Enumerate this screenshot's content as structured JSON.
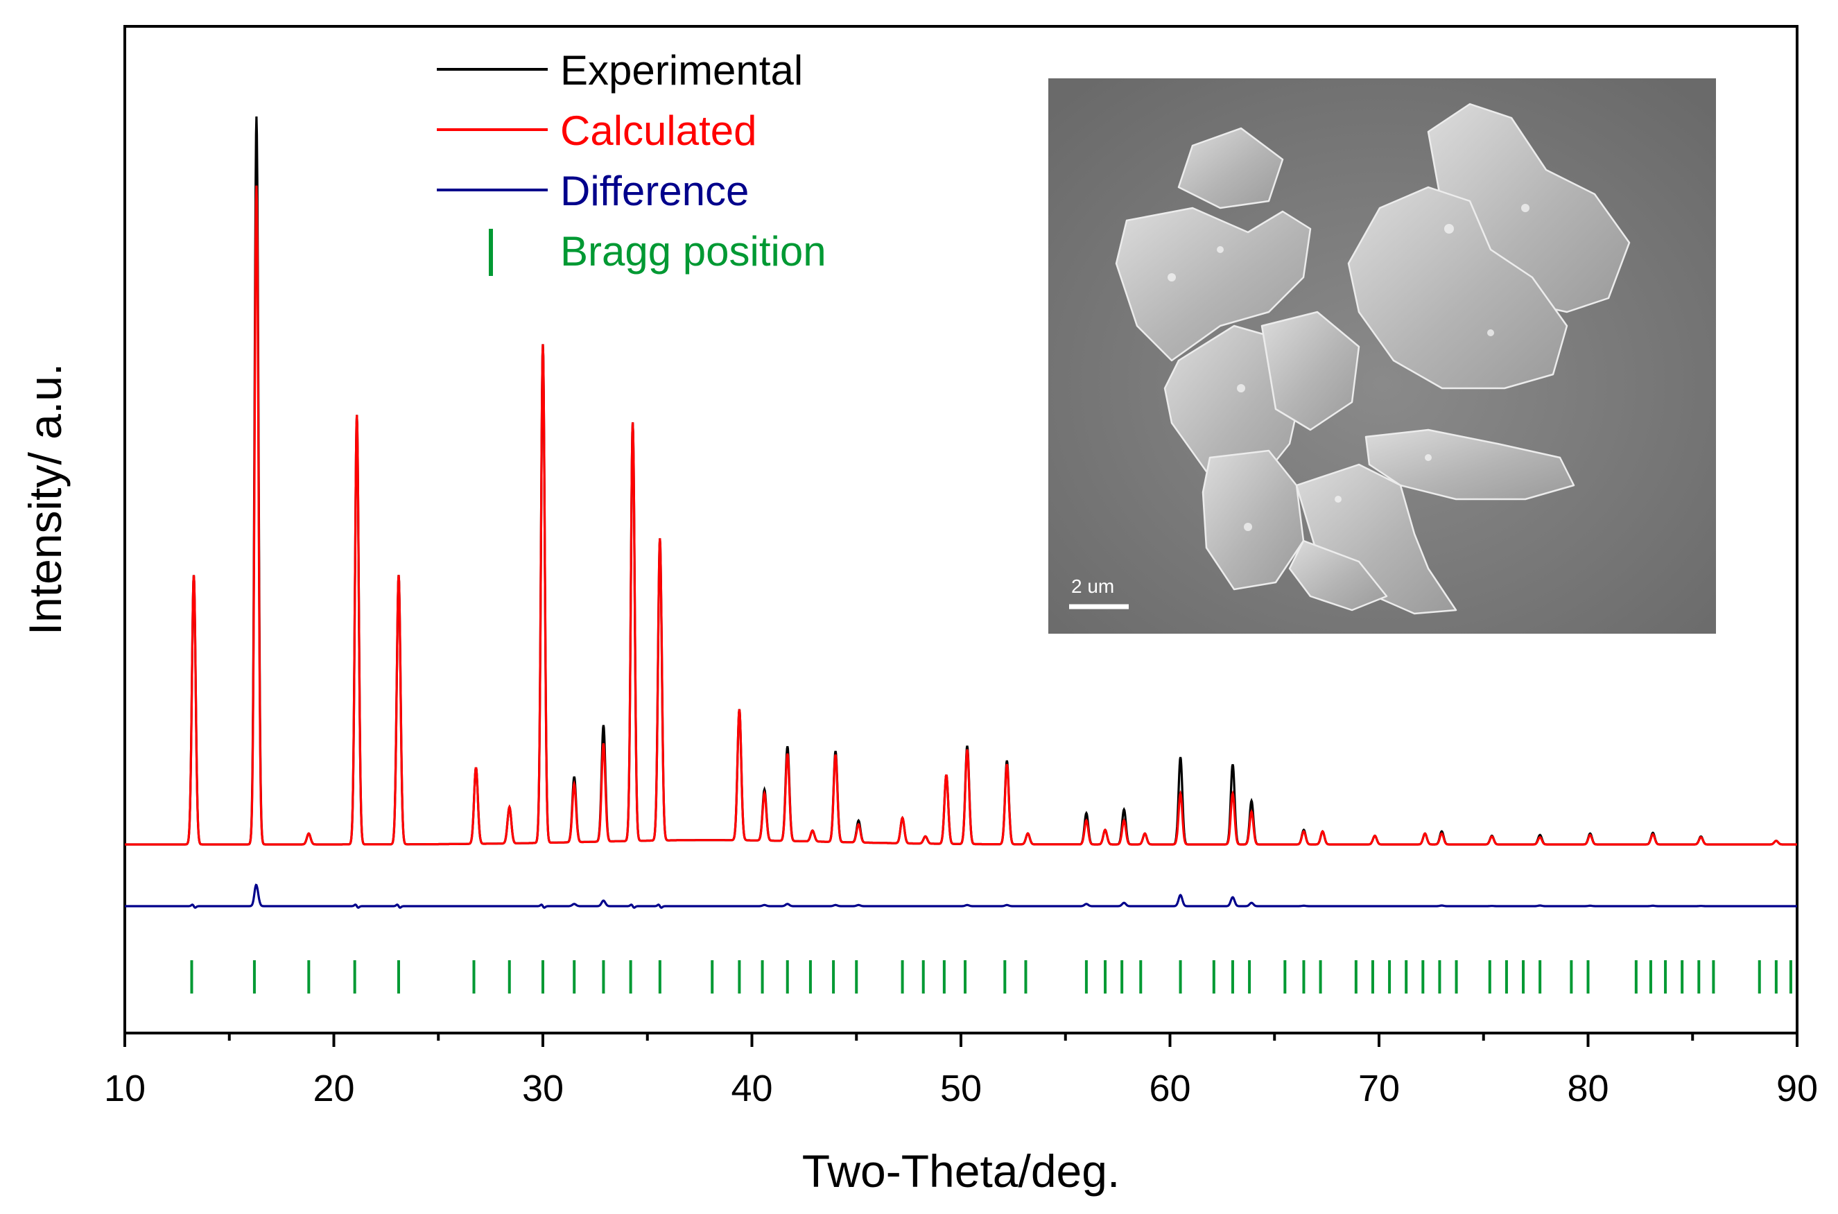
{
  "chart_data": {
    "type": "line",
    "title": "",
    "xlabel": "Two-Theta/deg.",
    "ylabel": "Intensity/ a.u.",
    "xlim": [
      10,
      90
    ],
    "x_ticks": [
      10,
      20,
      30,
      40,
      50,
      60,
      70,
      80,
      90
    ],
    "y_ticks": [],
    "grid": false,
    "legend_position": "top-left",
    "legend": [
      {
        "label": "Experimental",
        "color": "#000000",
        "marker": "line"
      },
      {
        "label": "Calculated",
        "color": "#ff0000",
        "marker": "line"
      },
      {
        "label": "Difference",
        "color": "#00008b",
        "marker": "line"
      },
      {
        "label": "Bragg position",
        "color": "#009933",
        "marker": "tick"
      }
    ],
    "scale_bar_label": "2 um",
    "experimental_peaks": [
      {
        "x": 13.3,
        "h": 37
      },
      {
        "x": 16.3,
        "h": 100
      },
      {
        "x": 18.8,
        "h": 1.5
      },
      {
        "x": 21.1,
        "h": 59
      },
      {
        "x": 23.1,
        "h": 37
      },
      {
        "x": 26.8,
        "h": 10.5
      },
      {
        "x": 28.4,
        "h": 5
      },
      {
        "x": 30.0,
        "h": 68.5
      },
      {
        "x": 31.5,
        "h": 9
      },
      {
        "x": 32.9,
        "h": 16
      },
      {
        "x": 34.3,
        "h": 57.5
      },
      {
        "x": 35.6,
        "h": 41.5
      },
      {
        "x": 39.4,
        "h": 18
      },
      {
        "x": 40.6,
        "h": 7
      },
      {
        "x": 41.7,
        "h": 13
      },
      {
        "x": 42.9,
        "h": 1.5
      },
      {
        "x": 44.0,
        "h": 12.5
      },
      {
        "x": 45.1,
        "h": 3
      },
      {
        "x": 47.2,
        "h": 3.5
      },
      {
        "x": 48.3,
        "h": 1
      },
      {
        "x": 49.3,
        "h": 9.5
      },
      {
        "x": 50.3,
        "h": 13.5
      },
      {
        "x": 52.2,
        "h": 11.5
      },
      {
        "x": 53.2,
        "h": 1.5
      },
      {
        "x": 56.0,
        "h": 4.3
      },
      {
        "x": 56.9,
        "h": 2
      },
      {
        "x": 57.8,
        "h": 4.8
      },
      {
        "x": 58.8,
        "h": 1.5
      },
      {
        "x": 60.5,
        "h": 12
      },
      {
        "x": 63.0,
        "h": 11
      },
      {
        "x": 63.9,
        "h": 6
      },
      {
        "x": 66.4,
        "h": 2
      },
      {
        "x": 67.3,
        "h": 1.8
      },
      {
        "x": 69.8,
        "h": 1.2
      },
      {
        "x": 72.2,
        "h": 1.5
      },
      {
        "x": 73.0,
        "h": 1.8
      },
      {
        "x": 75.4,
        "h": 1.2
      },
      {
        "x": 77.7,
        "h": 1.3
      },
      {
        "x": 80.1,
        "h": 1.5
      },
      {
        "x": 83.1,
        "h": 1.6
      },
      {
        "x": 85.4,
        "h": 1.1
      },
      {
        "x": 89.0,
        "h": 0.5
      }
    ],
    "calculated_peaks": [
      {
        "x": 13.3,
        "h": 37
      },
      {
        "x": 16.3,
        "h": 90.5
      },
      {
        "x": 18.8,
        "h": 1.5
      },
      {
        "x": 21.1,
        "h": 59
      },
      {
        "x": 23.1,
        "h": 37
      },
      {
        "x": 26.8,
        "h": 10.5
      },
      {
        "x": 28.4,
        "h": 5
      },
      {
        "x": 30.0,
        "h": 68.5
      },
      {
        "x": 31.5,
        "h": 8
      },
      {
        "x": 32.9,
        "h": 13.5
      },
      {
        "x": 34.3,
        "h": 57.5
      },
      {
        "x": 35.6,
        "h": 41.5
      },
      {
        "x": 39.4,
        "h": 18
      },
      {
        "x": 40.6,
        "h": 6.5
      },
      {
        "x": 41.7,
        "h": 12
      },
      {
        "x": 42.9,
        "h": 1.5
      },
      {
        "x": 44.0,
        "h": 12
      },
      {
        "x": 45.1,
        "h": 2.5
      },
      {
        "x": 47.2,
        "h": 3.5
      },
      {
        "x": 48.3,
        "h": 1
      },
      {
        "x": 49.3,
        "h": 9.5
      },
      {
        "x": 50.3,
        "h": 13
      },
      {
        "x": 52.2,
        "h": 11
      },
      {
        "x": 53.2,
        "h": 1.5
      },
      {
        "x": 56.0,
        "h": 3.3
      },
      {
        "x": 56.9,
        "h": 2
      },
      {
        "x": 57.8,
        "h": 3.3
      },
      {
        "x": 58.8,
        "h": 1.5
      },
      {
        "x": 60.5,
        "h": 7
      },
      {
        "x": 63.0,
        "h": 7
      },
      {
        "x": 63.9,
        "h": 4.5
      },
      {
        "x": 66.4,
        "h": 1.8
      },
      {
        "x": 67.3,
        "h": 1.8
      },
      {
        "x": 69.8,
        "h": 1.2
      },
      {
        "x": 72.2,
        "h": 1.5
      },
      {
        "x": 73.0,
        "h": 1.5
      },
      {
        "x": 75.4,
        "h": 1.1
      },
      {
        "x": 77.7,
        "h": 1
      },
      {
        "x": 80.1,
        "h": 1.3
      },
      {
        "x": 83.1,
        "h": 1.4
      },
      {
        "x": 85.4,
        "h": 1
      },
      {
        "x": 89.0,
        "h": 0.5
      }
    ],
    "bragg_positions": [
      13.2,
      16.2,
      18.8,
      21.0,
      23.1,
      26.7,
      28.4,
      30.0,
      31.5,
      32.9,
      34.2,
      35.6,
      38.1,
      39.4,
      40.5,
      41.7,
      42.8,
      43.9,
      45.0,
      47.2,
      48.2,
      49.2,
      50.2,
      52.1,
      53.1,
      56.0,
      56.9,
      57.7,
      58.6,
      60.5,
      62.1,
      63.0,
      63.8,
      65.5,
      66.4,
      67.2,
      68.9,
      69.7,
      70.5,
      71.3,
      72.1,
      72.9,
      73.7,
      75.3,
      76.1,
      76.9,
      77.7,
      79.2,
      80.0,
      82.3,
      83.0,
      83.7,
      84.5,
      85.3,
      86.0,
      88.2,
      89.0,
      89.7
    ]
  }
}
